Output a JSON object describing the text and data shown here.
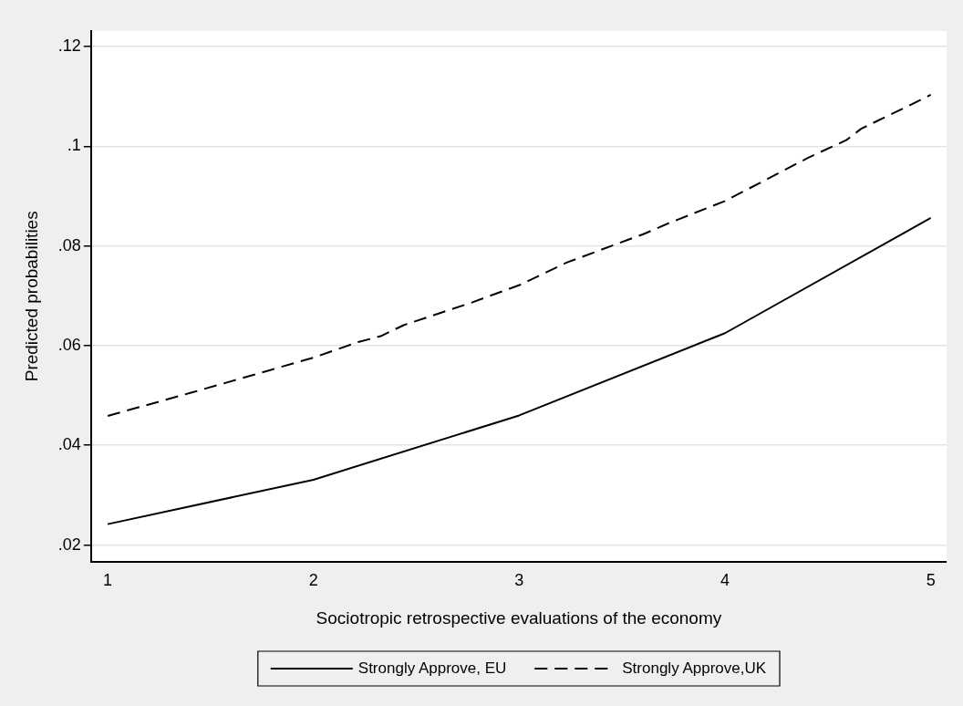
{
  "chart_data": {
    "type": "line",
    "xlabel": "Sociotropic retrospective evaluations of the economy",
    "ylabel": "Predicted probabilities",
    "xlim": [
      0.919,
      5.077
    ],
    "xticks": [
      1,
      2,
      3,
      4,
      5
    ],
    "ylim": [
      0.0167,
      0.1231
    ],
    "yticks": [
      {
        "value": 0.02,
        "label": ".02"
      },
      {
        "value": 0.04,
        "label": ".04"
      },
      {
        "value": 0.06,
        "label": ".06"
      },
      {
        "value": 0.08,
        "label": ".08"
      },
      {
        "value": 0.1,
        "label": ".1"
      },
      {
        "value": 0.12,
        "label": ".12"
      }
    ],
    "grid": "y",
    "legend": "bottom",
    "marker": "none",
    "series": [
      {
        "name": "Strongly Approve, EU",
        "color": "#000000",
        "line_style": "solid",
        "x": [
          1,
          2,
          3,
          4,
          5
        ],
        "values": [
          0.0242,
          0.0331,
          0.046,
          0.0625,
          0.0856
        ]
      },
      {
        "name": "Strongly Approve,UK",
        "color": "#000000",
        "line_style": "dashed",
        "x": [
          1,
          1.409,
          1.79,
          2,
          2.217,
          2.327,
          2.438,
          2.773,
          3.004,
          3.233,
          3.527,
          3.6,
          3.729,
          4,
          4.405,
          4.589,
          4.662,
          4.882,
          5
        ],
        "values": [
          0.0459,
          0.0506,
          0.0551,
          0.0576,
          0.0607,
          0.0619,
          0.0641,
          0.0687,
          0.0722,
          0.0767,
          0.0812,
          0.0823,
          0.0846,
          0.089,
          0.0977,
          0.1012,
          0.1035,
          0.1079,
          0.1103
        ]
      }
    ]
  }
}
